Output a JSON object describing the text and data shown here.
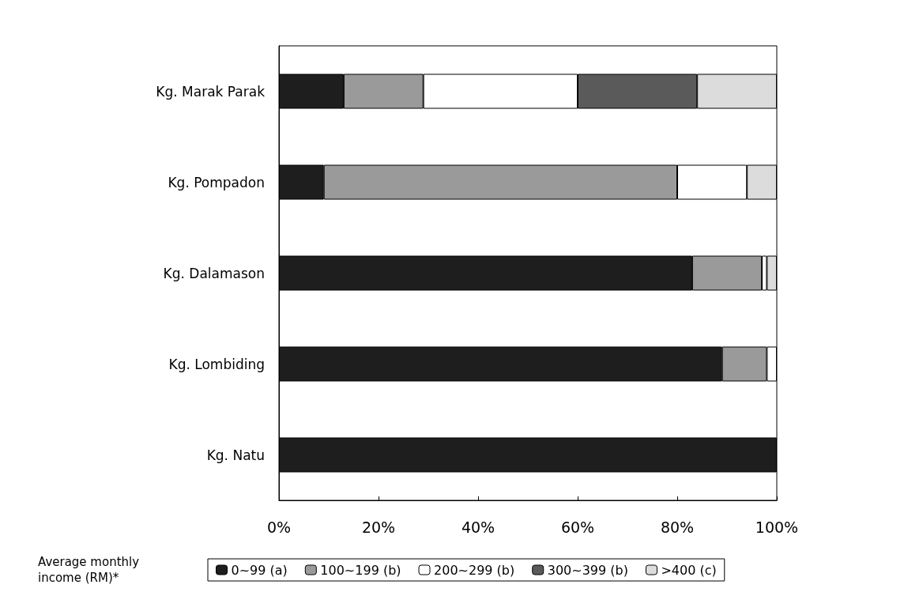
{
  "chart_data": {
    "type": "bar",
    "orientation": "horizontal",
    "stacked": true,
    "categories": [
      "Kg. Marak Parak",
      "Kg. Pompadon",
      "Kg. Dalamason",
      "Kg. Lombiding",
      "Kg. Natu"
    ],
    "series": [
      {
        "name": "0~99 (a)",
        "color": "#1e1e1e",
        "values": [
          13,
          9,
          83,
          89,
          100
        ]
      },
      {
        "name": "100~199 (b)",
        "color": "#9a9a9a",
        "values": [
          16,
          71,
          14,
          9,
          0
        ]
      },
      {
        "name": "200~299 (b)",
        "color": "#ffffff",
        "values": [
          31,
          14,
          1,
          2,
          0
        ]
      },
      {
        "name": "300~399 (b)",
        "color": "#5a5a5a",
        "values": [
          24,
          0,
          0,
          0,
          0
        ]
      },
      {
        "name": ">400 (c)",
        "color": "#dcdcdc",
        "values": [
          16,
          6,
          2,
          0,
          0
        ]
      }
    ],
    "xlim": [
      0,
      100
    ],
    "xticks": [
      {
        "value": 0,
        "label": "0%"
      },
      {
        "value": 20,
        "label": "20%"
      },
      {
        "value": 40,
        "label": "40%"
      },
      {
        "value": 60,
        "label": "60%"
      },
      {
        "value": 80,
        "label": "80%"
      },
      {
        "value": 100,
        "label": "100%"
      }
    ],
    "legend_title": "Average monthly income (RM)*",
    "legend": "bottom",
    "grid": false
  }
}
